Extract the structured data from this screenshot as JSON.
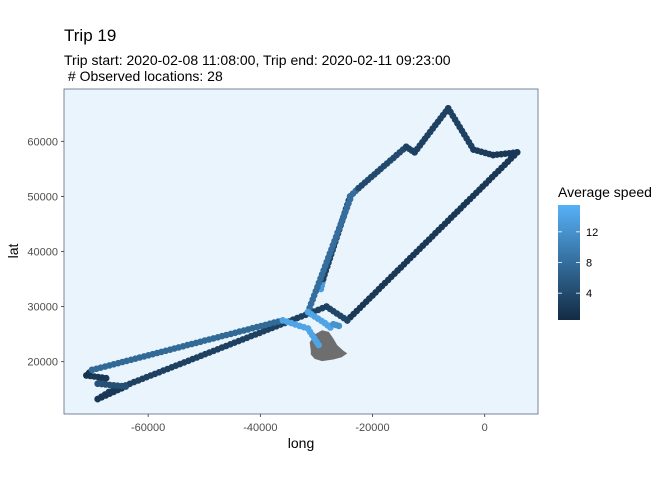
{
  "chart_data": {
    "type": "scatter",
    "title": "Trip 19",
    "subtitle_line1": "Trip start: 2020-02-08 11:08:00, Trip end: 2020-02-11 09:23:00",
    "subtitle_line2": " # Observed locations: 28",
    "xlabel": "long",
    "ylabel": "lat",
    "xlim": [
      -75000,
      9500
    ],
    "ylim": [
      10500,
      69500
    ],
    "xticks": [
      -60000,
      -40000,
      -20000,
      0
    ],
    "xtick_labels": [
      "-60000",
      "-40000",
      "-20000",
      "0"
    ],
    "yticks": [
      20000,
      30000,
      40000,
      50000,
      60000
    ],
    "ytick_labels": [
      "20000",
      "30000",
      "40000",
      "50000",
      "60000"
    ],
    "panel_background": "#eaf4fd",
    "legend": {
      "title": "Average speed",
      "position": "right",
      "breaks": [
        4,
        8,
        12
      ],
      "labels": [
        "4",
        "8",
        "12"
      ],
      "min": 0.5,
      "max": 15.5,
      "low_color": "#132b43",
      "high_color": "#56b1f7"
    },
    "land_color": "#6e6e6e",
    "land_outline": [
      [
        -31000,
        22000
      ],
      [
        -31200,
        23500
      ],
      [
        -30200,
        25000
      ],
      [
        -29000,
        25700
      ],
      [
        -27800,
        25400
      ],
      [
        -27000,
        24200
      ],
      [
        -26300,
        23000
      ],
      [
        -25200,
        22000
      ],
      [
        -24500,
        21500
      ],
      [
        -25500,
        20800
      ],
      [
        -27000,
        20400
      ],
      [
        -29000,
        20100
      ],
      [
        -30300,
        20500
      ],
      [
        -31000,
        21300
      ]
    ],
    "segments": [
      {
        "from": [
          -29200,
          33200
        ],
        "to": [
          -28800,
          35000
        ],
        "speed": 13.0
      },
      {
        "from": [
          -28800,
          35000
        ],
        "to": [
          -24000,
          50000
        ],
        "speed": 3.0
      },
      {
        "from": [
          -24000,
          50000
        ],
        "to": [
          -22500,
          51500
        ],
        "speed": 8.0
      },
      {
        "from": [
          -22500,
          51500
        ],
        "to": [
          -14000,
          59000
        ],
        "speed": 4.0
      },
      {
        "from": [
          -14000,
          59000
        ],
        "to": [
          -12500,
          58000
        ],
        "speed": 3.0
      },
      {
        "from": [
          -12500,
          58000
        ],
        "to": [
          -6500,
          66000
        ],
        "speed": 3.0
      },
      {
        "from": [
          -6500,
          66000
        ],
        "to": [
          -2000,
          58500
        ],
        "speed": 3.0
      },
      {
        "from": [
          -2000,
          58500
        ],
        "to": [
          1500,
          57500
        ],
        "speed": 2.5
      },
      {
        "from": [
          1500,
          57500
        ],
        "to": [
          5800,
          58000
        ],
        "speed": 2.0
      },
      {
        "from": [
          5800,
          58000
        ],
        "to": [
          -24500,
          27500
        ],
        "speed": 2.0
      },
      {
        "from": [
          -24500,
          27500
        ],
        "to": [
          -28200,
          30000
        ],
        "speed": 3.5
      },
      {
        "from": [
          -28200,
          30000
        ],
        "to": [
          -67000,
          14500
        ],
        "speed": 3.0
      },
      {
        "from": [
          -67000,
          14500
        ],
        "to": [
          -69000,
          13200
        ],
        "speed": 2.5
      },
      {
        "from": [
          -69000,
          13200
        ],
        "to": [
          -64000,
          15500
        ],
        "speed": 2.0
      },
      {
        "from": [
          -64000,
          15500
        ],
        "to": [
          -69000,
          16000
        ],
        "speed": 4.5
      },
      {
        "from": [
          -69000,
          16000
        ],
        "to": [
          -67500,
          17000
        ],
        "speed": 5.0
      },
      {
        "from": [
          -67500,
          17000
        ],
        "to": [
          -71000,
          17500
        ],
        "speed": 2.0
      },
      {
        "from": [
          -71000,
          17500
        ],
        "to": [
          -70000,
          18500
        ],
        "speed": 1.5
      },
      {
        "from": [
          -70000,
          18500
        ],
        "to": [
          -36000,
          27500
        ],
        "speed": 7.5
      },
      {
        "from": [
          -36000,
          27500
        ],
        "to": [
          -31500,
          26000
        ],
        "speed": 14.0
      },
      {
        "from": [
          -31500,
          26000
        ],
        "to": [
          -29600,
          23000
        ],
        "speed": 14.0
      },
      {
        "from": [
          -24000,
          49500
        ],
        "to": [
          -31500,
          29000
        ],
        "speed": 8.0
      },
      {
        "from": [
          -31500,
          29000
        ],
        "to": [
          -28500,
          27000
        ],
        "speed": 14.0
      },
      {
        "from": [
          -28500,
          27000
        ],
        "to": [
          -27500,
          26200
        ],
        "speed": 14.0
      },
      {
        "from": [
          -27000,
          26800
        ],
        "to": [
          -26000,
          26500
        ],
        "speed": 12.0
      }
    ]
  }
}
